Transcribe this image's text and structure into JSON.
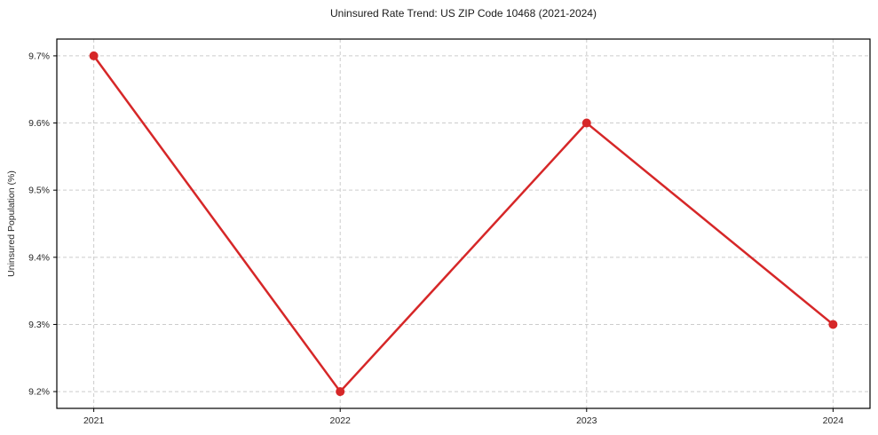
{
  "figure": {
    "background": "#ffffff"
  },
  "chart_data": {
    "type": "line",
    "title": "Uninsured Rate Trend: US ZIP Code 10468 (2021-2024)",
    "xlabel": "",
    "ylabel": "Uninsured Population (%)",
    "x": [
      2021,
      2022,
      2023,
      2024
    ],
    "values": [
      9.7,
      9.2,
      9.6,
      9.3
    ],
    "categories": [
      "2021",
      "2022",
      "2023",
      "2024"
    ],
    "xticks": [
      2021,
      2022,
      2023,
      2024
    ],
    "xtick_labels": [
      "2021",
      "2022",
      "2023",
      "2024"
    ],
    "yticks": [
      9.2,
      9.3,
      9.4,
      9.5,
      9.6,
      9.7
    ],
    "ytick_labels": [
      "9.2%",
      "9.3%",
      "9.4%",
      "9.5%",
      "9.6%",
      "9.7%"
    ],
    "xlim": [
      2020.85,
      2024.15
    ],
    "ylim": [
      9.175,
      9.725
    ],
    "grid": true,
    "grid_style": "dashed",
    "legend": false,
    "line_color": "#d62728",
    "marker_color": "#d62728",
    "grid_color": "#cccccc",
    "spine_color": "#000000",
    "tick_label_color": "#262626",
    "title_color": "#1a1a1a"
  }
}
